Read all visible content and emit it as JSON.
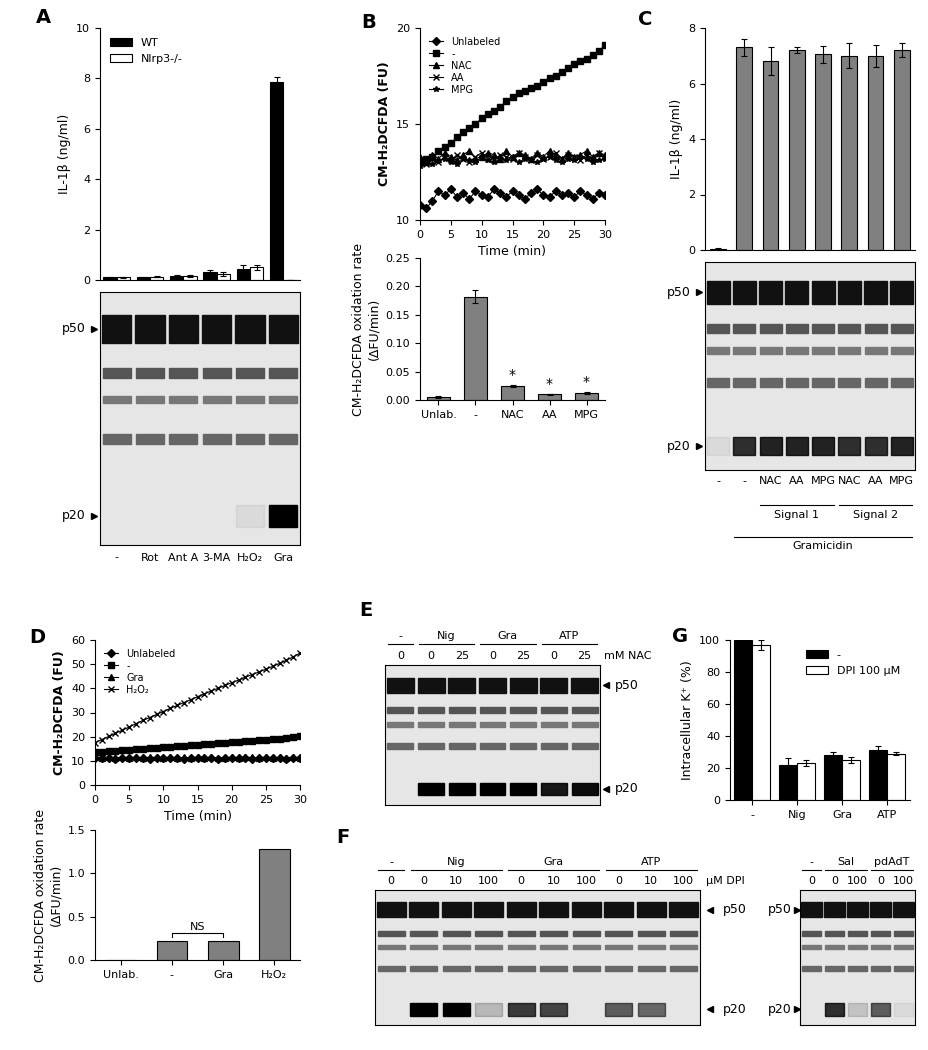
{
  "chart_data": [
    {
      "type": "bar",
      "title": "A",
      "y_label": "IL-1β (ng/ml)",
      "categories": [
        "-",
        "Rot",
        "Ant A",
        "3-MA",
        "H₂O₂",
        "Gra"
      ],
      "series": [
        {
          "name": "WT",
          "color": "#000000",
          "values": [
            0.1,
            0.1,
            0.15,
            0.3,
            0.45,
            7.85
          ],
          "errors": [
            0.03,
            0.02,
            0.03,
            0.1,
            0.15,
            0.2
          ]
        },
        {
          "name": "Nlrp3-/-",
          "color": "#ffffff",
          "values": [
            0.1,
            0.12,
            0.15,
            0.25,
            0.5,
            0.0
          ],
          "errors": [
            0.02,
            0.02,
            0.03,
            0.08,
            0.1,
            0.0
          ]
        }
      ],
      "ylim": [
        0,
        10
      ],
      "yticks": [
        0,
        2,
        4,
        6,
        8,
        10
      ],
      "legend": "upper left",
      "tick_labels": "y"
    },
    {
      "type": "line",
      "title": "B",
      "x_label": "Time (min)",
      "y_label": "CM-H₂DCFDA (FU)",
      "x": [
        0,
        1,
        2,
        3,
        4,
        5,
        6,
        7,
        8,
        9,
        10,
        11,
        12,
        13,
        14,
        15,
        16,
        17,
        18,
        19,
        20,
        21,
        22,
        23,
        24,
        25,
        26,
        27,
        28,
        29,
        30
      ],
      "series": [
        {
          "name": "Unlabeled",
          "color": "#000000",
          "marker": "diamond",
          "values": [
            10.8,
            10.6,
            11.0,
            11.5,
            11.3,
            11.6,
            11.2,
            11.4,
            11.1,
            11.5,
            11.3,
            11.2,
            11.6,
            11.4,
            11.2,
            11.5,
            11.3,
            11.1,
            11.4,
            11.6,
            11.3,
            11.2,
            11.5,
            11.3,
            11.4,
            11.2,
            11.5,
            11.3,
            11.1,
            11.4,
            11.3
          ]
        },
        {
          "name": "-",
          "color": "#000000",
          "marker": "square",
          "values": [
            13.0,
            13.2,
            13.3,
            13.6,
            13.8,
            14.0,
            14.3,
            14.6,
            14.8,
            15.0,
            15.3,
            15.5,
            15.7,
            15.9,
            16.2,
            16.4,
            16.6,
            16.7,
            16.9,
            17.0,
            17.2,
            17.4,
            17.5,
            17.7,
            17.9,
            18.1,
            18.3,
            18.4,
            18.6,
            18.8,
            19.1
          ]
        },
        {
          "name": "NAC",
          "color": "#000000",
          "marker": "triangle",
          "values": [
            13.3,
            13.0,
            13.4,
            13.2,
            13.5,
            13.3,
            13.1,
            13.4,
            13.6,
            13.2,
            13.3,
            13.5,
            13.4,
            13.2,
            13.6,
            13.3,
            13.5,
            13.4,
            13.2,
            13.5,
            13.3,
            13.6,
            13.4,
            13.2,
            13.5,
            13.3,
            13.4,
            13.6,
            13.3,
            13.5,
            13.4
          ]
        },
        {
          "name": "AA",
          "color": "#000000",
          "marker": "x",
          "values": [
            13.1,
            12.9,
            13.2,
            13.0,
            13.3,
            13.1,
            13.4,
            13.2,
            13.0,
            13.3,
            13.5,
            13.2,
            13.1,
            13.4,
            13.3,
            13.2,
            13.5,
            13.3,
            13.1,
            13.4,
            13.2,
            13.3,
            13.5,
            13.2,
            13.4,
            13.3,
            13.1,
            13.4,
            13.2,
            13.5,
            13.3
          ]
        },
        {
          "name": "MPG",
          "color": "#000000",
          "marker": "star",
          "values": [
            12.8,
            13.0,
            12.9,
            13.1,
            13.2,
            13.0,
            12.9,
            13.2,
            13.1,
            13.0,
            13.3,
            13.1,
            13.0,
            13.2,
            13.1,
            13.3,
            13.0,
            13.2,
            13.1,
            13.0,
            13.2,
            13.3,
            13.1,
            13.0,
            13.2,
            13.1,
            13.3,
            13.2,
            13.0,
            13.1,
            13.2
          ]
        }
      ],
      "xlim": [
        0,
        30
      ],
      "xticks": [
        0,
        5,
        10,
        15,
        20,
        25,
        30
      ],
      "ylim": [
        10,
        20
      ],
      "yticks": [
        10,
        15,
        20
      ],
      "legend": "upper left"
    },
    {
      "type": "bar",
      "y_label": "CM-H₂DCFDA oxidation rate\n(ΔFU/min)",
      "categories": [
        "Unlab.",
        "-",
        "NAC",
        "AA",
        "MPG"
      ],
      "values": [
        0.005,
        0.182,
        0.025,
        0.01,
        0.012
      ],
      "errors": [
        0.002,
        0.012,
        0.002,
        0.001,
        0.002
      ],
      "color": "#808080",
      "ylim": [
        0,
        0.25
      ],
      "yticks": [
        {
          "value": 0,
          "label": "0.00"
        },
        0.05,
        {
          "value": 0.1,
          "label": "0.10"
        },
        0.15,
        {
          "value": 0.2,
          "label": "0.20"
        },
        0.25
      ],
      "annotations": [
        {
          "text": "*",
          "at": "NAC"
        },
        {
          "text": "*",
          "at": "AA"
        },
        {
          "text": "*",
          "at": "MPG"
        }
      ]
    },
    {
      "type": "bar",
      "title": "C",
      "y_label": "IL-1β (ng/ml)",
      "categories": [
        "-",
        "-",
        "NAC",
        "AA",
        "MPG",
        "NAC",
        "AA",
        "MPG"
      ],
      "values": [
        0.05,
        7.3,
        6.8,
        7.2,
        7.05,
        7.0,
        7.0,
        7.2
      ],
      "errors": [
        0.02,
        0.3,
        0.5,
        0.1,
        0.3,
        0.45,
        0.4,
        0.25
      ],
      "color": "#808080",
      "ylim": [
        0,
        8
      ],
      "yticks": [
        0,
        2,
        4,
        6,
        8
      ],
      "tick_labels": "y"
    },
    {
      "type": "line",
      "title": "D",
      "x_label": "Time (min)",
      "y_label": "CM-H₂DCFDA (FU)",
      "x": [
        0,
        1,
        2,
        3,
        4,
        5,
        6,
        7,
        8,
        9,
        10,
        11,
        12,
        13,
        14,
        15,
        16,
        17,
        18,
        19,
        20,
        21,
        22,
        23,
        24,
        25,
        26,
        27,
        28,
        29,
        30
      ],
      "series": [
        {
          "name": "Unlabeled",
          "color": "#000000",
          "marker": "diamond",
          "values": [
            11.0,
            11.1,
            11.0,
            10.9,
            11.0,
            11.1,
            11.0,
            11.0,
            10.9,
            11.1,
            11.0,
            11.0,
            11.1,
            10.9,
            11.0,
            11.0,
            11.1,
            11.0,
            10.9,
            11.0,
            11.1,
            11.0,
            11.0,
            10.9,
            11.1,
            11.0,
            11.0,
            11.1,
            10.9,
            11.0,
            11.0
          ]
        },
        {
          "name": "-",
          "color": "#000000",
          "marker": "square",
          "values": [
            13.5,
            13.7,
            13.9,
            14.2,
            14.4,
            14.6,
            14.8,
            15.0,
            15.3,
            15.5,
            15.7,
            15.9,
            16.1,
            16.3,
            16.5,
            16.7,
            16.9,
            17.1,
            17.3,
            17.5,
            17.7,
            17.9,
            18.1,
            18.3,
            18.5,
            18.7,
            18.9,
            19.2,
            19.5,
            19.8,
            20.2
          ]
        },
        {
          "name": "Gra",
          "color": "#000000",
          "marker": "triangle",
          "values": [
            11.4,
            11.3,
            11.5,
            11.3,
            11.4,
            11.2,
            11.4,
            11.3,
            11.5,
            11.4,
            11.3,
            11.4,
            11.2,
            11.4,
            11.3,
            11.5,
            11.3,
            11.4,
            11.3,
            11.2,
            11.4,
            11.3,
            11.5,
            11.4,
            11.3,
            11.4,
            11.2,
            11.4,
            11.3,
            11.5,
            11.3
          ]
        },
        {
          "name": "H₂O₂",
          "color": "#000000",
          "marker": "x",
          "values": [
            17.5,
            18.8,
            20.1,
            21.4,
            22.7,
            24.0,
            25.4,
            26.7,
            27.9,
            29.2,
            30.4,
            31.7,
            32.9,
            34.1,
            35.3,
            36.5,
            37.7,
            38.9,
            40.0,
            41.2,
            42.3,
            43.4,
            44.6,
            45.7,
            46.8,
            47.9,
            49.1,
            50.3,
            51.6,
            53.0,
            54.6
          ]
        }
      ],
      "xlim": [
        0,
        30
      ],
      "xticks": [
        0,
        5,
        10,
        15,
        20,
        25,
        30
      ],
      "ylim": [
        0,
        60
      ],
      "yticks": [
        0,
        10,
        20,
        30,
        40,
        50,
        60
      ],
      "legend": "upper left"
    },
    {
      "type": "bar",
      "y_label": "CM-H₂DCFDA oxidation rate\n(ΔFU/min)",
      "categories": [
        "Unlab.",
        "-",
        "Gra",
        "H₂O₂"
      ],
      "values": [
        0.005,
        0.22,
        0.22,
        1.28
      ],
      "color": "#808080",
      "ylim": [
        0,
        1.5
      ],
      "yticks": [
        {
          "value": 0,
          "label": "0.0"
        },
        0.5,
        {
          "value": 1,
          "label": "1.0"
        },
        1.5
      ],
      "annotations": [
        {
          "text": "NS",
          "between": [
            "-",
            "Gra"
          ]
        }
      ]
    },
    {
      "type": "bar",
      "title": "G",
      "y_label": "Intracellular K⁺ (%)",
      "categories": [
        "-",
        "Nig",
        "Gra",
        "ATP"
      ],
      "series": [
        {
          "name": "-",
          "color": "#000000",
          "values": [
            100,
            22,
            28,
            31
          ],
          "errors": [
            2,
            4,
            2,
            3
          ]
        },
        {
          "name": "DPI 100 µM",
          "color": "#ffffff",
          "values": [
            97,
            23,
            25,
            29
          ],
          "errors": [
            3,
            2,
            2,
            1
          ]
        }
      ],
      "ylim": [
        0,
        100
      ],
      "yticks": [
        0,
        20,
        40,
        60,
        80,
        100
      ],
      "legend": "upper right"
    }
  ],
  "blots": [
    {
      "markers": [
        "p50",
        "p20"
      ],
      "marker_side": "left",
      "p20": [
        0,
        0,
        0,
        0,
        0.05,
        1.0
      ]
    },
    {
      "markers": [
        "p50",
        "p20"
      ],
      "marker_side": "left",
      "p20": [
        0.05,
        0.8,
        0.85,
        0.85,
        0.85,
        0.8,
        0.8,
        0.85
      ],
      "groups": [
        [
          {
            "label": "Signal 1",
            "lanes": [
              2,
              4
            ]
          },
          {
            "label": "Signal 2",
            "lanes": [
              5,
              7
            ]
          }
        ],
        [
          {
            "label": "Gramicidin",
            "lanes": [
              1,
              7
            ]
          }
        ]
      ]
    },
    {
      "panel": "E",
      "markers": [
        "p50",
        "p20"
      ],
      "marker_side": "right",
      "p20": [
        0,
        1.0,
        1.0,
        1.0,
        1.0,
        0.9,
        0.95
      ],
      "groups": [
        {
          "label": "-",
          "lanes": [
            0,
            0
          ]
        },
        {
          "label": "Nig",
          "lanes": [
            1,
            2
          ]
        },
        {
          "label": "Gra",
          "lanes": [
            3,
            4
          ]
        },
        {
          "label": "ATP",
          "lanes": [
            5,
            6
          ]
        }
      ],
      "lanes": [
        "0",
        "0",
        "25",
        "0",
        "25",
        "0",
        "25"
      ],
      "row_label": "mM NAC"
    },
    {
      "panel": "F",
      "markers": [
        "p50",
        "p20"
      ],
      "marker_side": "right",
      "p20": [
        0,
        1.0,
        1.0,
        0.2,
        0.75,
        0.7,
        0,
        0.6,
        0.55,
        0
      ],
      "groups": [
        {
          "label": "-",
          "lanes": [
            0,
            0
          ]
        },
        {
          "label": "Nig",
          "lanes": [
            1,
            3
          ]
        },
        {
          "label": "Gra",
          "lanes": [
            4,
            6
          ]
        },
        {
          "label": "ATP",
          "lanes": [
            7,
            9
          ]
        }
      ],
      "lanes": [
        "0",
        "0",
        "10",
        "100",
        "0",
        "10",
        "100",
        "0",
        "10",
        "100"
      ],
      "row_label": "µM DPI"
    },
    {
      "markers": [
        "p50",
        "p20"
      ],
      "marker_side": "left",
      "p20": [
        0,
        0.8,
        0.15,
        0.6,
        0.05
      ],
      "groups": [
        {
          "label": "-",
          "lanes": [
            0,
            0
          ]
        },
        {
          "label": "Sal",
          "lanes": [
            1,
            2
          ]
        },
        {
          "label": "pdAdT",
          "lanes": [
            3,
            4
          ]
        }
      ],
      "lanes": [
        "0",
        "0",
        "100",
        "0",
        "100"
      ]
    }
  ]
}
